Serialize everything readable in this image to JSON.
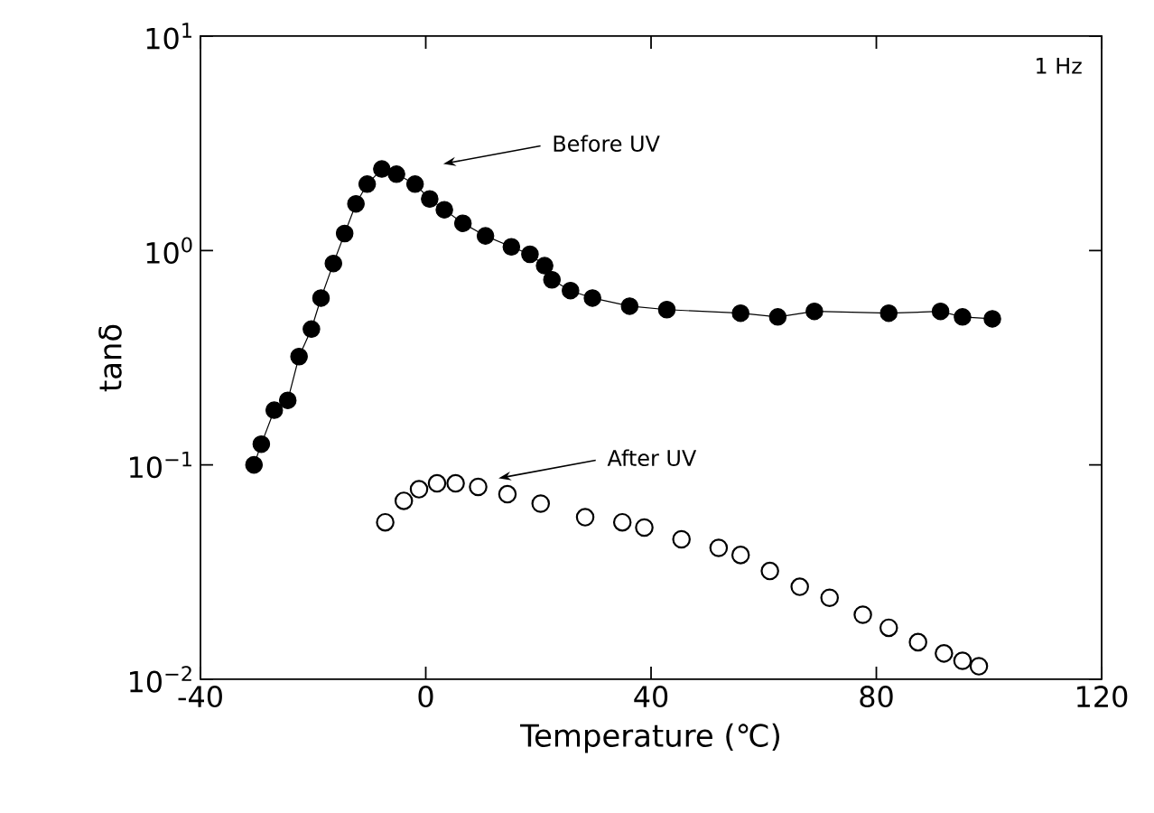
{
  "chart_data": {
    "type": "line",
    "xlabel": "Temperature (℃)",
    "ylabel": "tanδ",
    "log": "y",
    "xlim": [
      -40,
      120
    ],
    "xticks": [
      -40,
      0,
      40,
      80,
      120
    ],
    "ylim": [
      0.01,
      10
    ],
    "yticks": [
      {
        "value": 0.01,
        "label": "10$^{−2}$"
      },
      {
        "value": 0.1,
        "label": "10$^{−1}$"
      },
      {
        "value": 1,
        "label": "10$^{0}$"
      },
      {
        "value": 10,
        "label": "10$^{1}$"
      }
    ],
    "grid": false,
    "marker": "circle",
    "series": [
      {
        "color": "#000000",
        "x": [
          -30.5,
          -29.2,
          -26.9,
          -24.5,
          -22.5,
          -20.3,
          -18.6,
          -16.4,
          -14.4,
          -12.4,
          -10.4,
          -7.8,
          -5.2,
          -1.9,
          0.7,
          3.3,
          6.6,
          10.6,
          15.2,
          18.5,
          21.1,
          22.4,
          25.7,
          29.6,
          36.2,
          42.8,
          55.9,
          62.5,
          69.0,
          82.2,
          91.4,
          95.3,
          100.6
        ],
        "values": [
          0.1,
          0.125,
          0.18,
          0.2,
          0.32,
          0.43,
          0.6,
          0.87,
          1.2,
          1.65,
          2.04,
          2.4,
          2.27,
          2.04,
          1.74,
          1.55,
          1.34,
          1.17,
          1.04,
          0.96,
          0.85,
          0.73,
          0.65,
          0.6,
          0.55,
          0.53,
          0.51,
          0.49,
          0.52,
          0.51,
          0.52,
          0.49,
          0.48
        ]
      },
      {
        "type": "scatter",
        "color": "#000000",
        "x": [
          -7.2,
          -3.9,
          -1.2,
          2.0,
          5.3,
          9.3,
          14.5,
          20.4,
          28.3,
          34.9,
          38.8,
          45.4,
          52.0,
          55.9,
          61.1,
          66.4,
          71.7,
          77.6,
          82.2,
          87.4,
          92.0,
          95.3,
          98.2
        ],
        "values": [
          0.054,
          0.068,
          0.077,
          0.082,
          0.082,
          0.079,
          0.073,
          0.066,
          0.057,
          0.054,
          0.051,
          0.045,
          0.041,
          0.038,
          0.032,
          0.027,
          0.024,
          0.02,
          0.0174,
          0.0149,
          0.0132,
          0.0122,
          0.0115
        ]
      }
    ],
    "annotations": [
      "Before UV",
      "After UV",
      "1 Hz"
    ]
  }
}
